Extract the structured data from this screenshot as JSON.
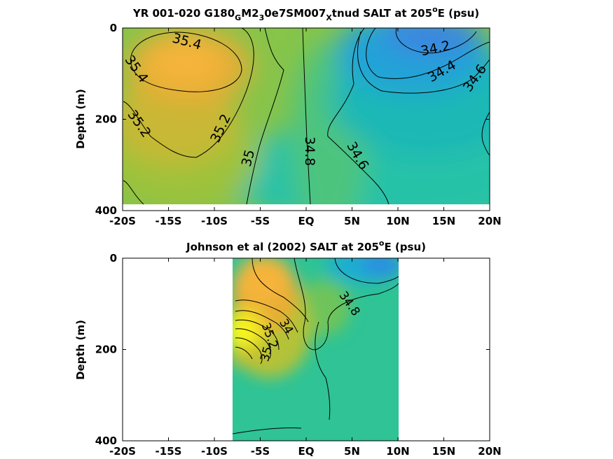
{
  "chart_data": [
    {
      "type": "heatmap",
      "panel": "top",
      "title": {
        "parts": [
          {
            "t": "YR 001-020 G180",
            "s": "n"
          },
          {
            "t": "G",
            "s": "sub"
          },
          {
            "t": "M2",
            "s": "n"
          },
          {
            "t": "3",
            "s": "sub"
          },
          {
            "t": "0e7SM007",
            "s": "n"
          },
          {
            "t": "X",
            "s": "sub"
          },
          {
            "t": "tnud SALT at 205",
            "s": "n"
          },
          {
            "t": "o",
            "s": "sup"
          },
          {
            "t": "E (psu)",
            "s": "n"
          }
        ]
      },
      "ylabel": "Depth (m)",
      "xlim": [
        -20,
        20
      ],
      "ylim": [
        0,
        400
      ],
      "x_ticks": [
        -20,
        -15,
        -10,
        -5,
        0,
        5,
        10,
        15,
        20
      ],
      "x_tick_labels": [
        "-20S",
        "-15S",
        "-10S",
        "-5S",
        "EQ",
        "5N",
        "10N",
        "15N",
        "20N"
      ],
      "y_ticks": [
        0,
        200,
        400
      ],
      "y_tick_labels": [
        "0",
        "200",
        "400"
      ],
      "data_xrange": [
        -20,
        20
      ],
      "data_yrange": [
        0,
        385
      ],
      "contour_labels": [
        {
          "text": "35.4",
          "x": -13,
          "y": 30,
          "angle": 15
        },
        {
          "text": "35.4",
          "x": -18.5,
          "y": 90,
          "angle": 55
        },
        {
          "text": "35.2",
          "x": -18.2,
          "y": 210,
          "angle": 55
        },
        {
          "text": "35.2",
          "x": -9.3,
          "y": 220,
          "angle": -65
        },
        {
          "text": "35",
          "x": -6.3,
          "y": 285,
          "angle": -75
        },
        {
          "text": "34.8",
          "x": 0.4,
          "y": 270,
          "angle": 90
        },
        {
          "text": "34.6",
          "x": 5.6,
          "y": 280,
          "angle": 60
        },
        {
          "text": "34.2",
          "x": 14.1,
          "y": 45,
          "angle": -12
        },
        {
          "text": "34.4",
          "x": 14.8,
          "y": 95,
          "angle": -30
        },
        {
          "text": "34.6",
          "x": 18.4,
          "y": 110,
          "angle": -55
        }
      ]
    },
    {
      "type": "heatmap",
      "panel": "bottom",
      "title": {
        "parts": [
          {
            "t": "Johnson et al (2002) SALT at 205",
            "s": "n"
          },
          {
            "t": "o",
            "s": "sup"
          },
          {
            "t": "E (psu)",
            "s": "n"
          }
        ]
      },
      "ylabel": "Depth (m)",
      "xlim": [
        -20,
        20
      ],
      "ylim": [
        0,
        400
      ],
      "x_ticks": [
        -20,
        -15,
        -10,
        -5,
        0,
        5,
        10,
        15,
        20
      ],
      "x_tick_labels": [
        "-20S",
        "-15S",
        "-10S",
        "-5S",
        "EQ",
        "5N",
        "10N",
        "15N",
        "20N"
      ],
      "y_ticks": [
        0,
        200,
        400
      ],
      "y_tick_labels": [
        "0",
        "200",
        "400"
      ],
      "data_xrange": [
        -8,
        10
      ],
      "data_yrange": [
        0,
        400
      ],
      "contour_labels": [
        {
          "text": "34.8",
          "x": 4.7,
          "y": 100,
          "angle": 55
        },
        {
          "text": "34",
          "x": -2.2,
          "y": 150,
          "angle": 60
        },
        {
          "text": "35.2",
          "x": -4.0,
          "y": 170,
          "angle": 70
        },
        {
          "text": "35",
          "x": -4.3,
          "y": 210,
          "angle": -75
        }
      ]
    }
  ]
}
